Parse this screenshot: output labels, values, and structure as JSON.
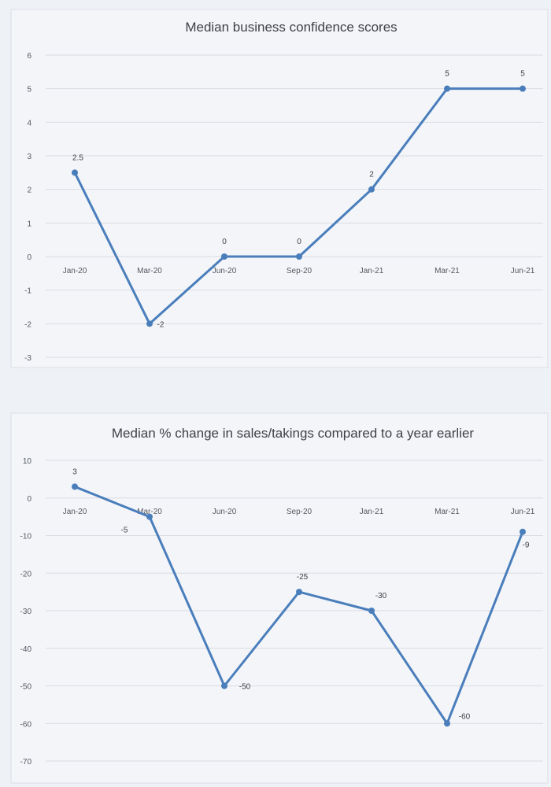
{
  "chart_data": [
    {
      "type": "line",
      "title": "Median business confidence scores",
      "categories": [
        "Jan-20",
        "Mar-20",
        "Jun-20",
        "Sep-20",
        "Jan-21",
        "Mar-21",
        "Jun-21"
      ],
      "values": [
        2.5,
        -2,
        0,
        0,
        2,
        5,
        5
      ],
      "data_labels": [
        "2.5",
        "-2",
        "0",
        "0",
        "2",
        "5",
        "5"
      ],
      "y_ticks": [
        "-3",
        "-2",
        "-1",
        "0",
        "1",
        "2",
        "3",
        "4",
        "5",
        "6"
      ],
      "ylim": [
        -3,
        6
      ],
      "grid": true,
      "legend": "none",
      "line_color": "#4a7ebb"
    },
    {
      "type": "line",
      "title": "Median % change in sales/takings compared to a year earlier",
      "categories": [
        "Jan-20",
        "Mar-20",
        "Jun-20",
        "Sep-20",
        "Jan-21",
        "Mar-21",
        "Jun-21"
      ],
      "values": [
        3,
        -5,
        -50,
        -25,
        -30,
        -60,
        -9
      ],
      "data_labels": [
        "3",
        "-5",
        "-50",
        "-25",
        "-30",
        "-60",
        "-9"
      ],
      "y_ticks": [
        "-70",
        "-60",
        "-50",
        "-40",
        "-30",
        "-20",
        "-10",
        "0",
        "10"
      ],
      "ylim": [
        -70,
        10
      ],
      "grid": true,
      "legend": "none",
      "line_color": "#4a7ebb"
    }
  ]
}
